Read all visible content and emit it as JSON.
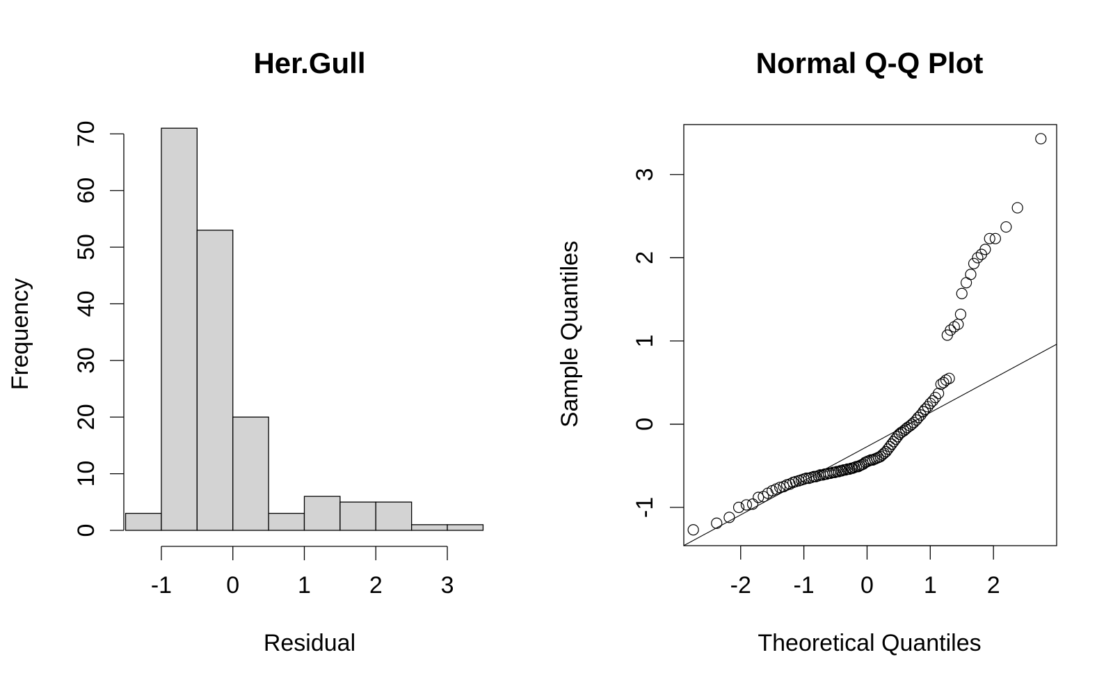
{
  "chart_data": [
    {
      "type": "bar",
      "title": "Her.Gull",
      "xlabel": "Residual",
      "ylabel": "Frequency",
      "bin_edges": [
        -1.5,
        -1,
        -0.5,
        0,
        0.5,
        1,
        1.5,
        2,
        2.5,
        3,
        3.5
      ],
      "values": [
        3,
        71,
        53,
        20,
        3,
        6,
        5,
        5,
        1,
        1
      ],
      "xticks": [
        -1,
        0,
        1,
        2,
        3
      ],
      "xtick_labels": [
        "-1",
        "0",
        "1",
        "2",
        "3"
      ],
      "yticks": [
        0,
        10,
        20,
        30,
        40,
        50,
        60,
        70
      ],
      "ytick_labels": [
        "0",
        "10",
        "20",
        "30",
        "40",
        "50",
        "60",
        "70"
      ],
      "xlim": [
        -1.7,
        3.7
      ],
      "ylim": [
        0,
        72.5
      ],
      "bar_color": "#d3d3d3"
    },
    {
      "type": "scatter",
      "title": "Normal Q-Q Plot",
      "xlabel": "Theoretical Quantiles",
      "ylabel": "Sample Quantiles",
      "xlim": [
        -2.9,
        3.0
      ],
      "ylim": [
        -1.46,
        3.6
      ],
      "xticks": [
        -2,
        -1,
        0,
        1,
        2
      ],
      "xtick_labels": [
        "-2",
        "-1",
        "0",
        "1",
        "2"
      ],
      "yticks": [
        -1,
        0,
        1,
        2,
        3
      ],
      "yticks_labels": [
        "-1",
        "0",
        "1",
        "2",
        "3"
      ],
      "reference_line": {
        "intercept": -0.27,
        "slope": 0.41
      },
      "points": [
        [
          -2.75,
          -1.27
        ],
        [
          -2.38,
          -1.19
        ],
        [
          -2.18,
          -1.12
        ],
        [
          -2.03,
          -1.0
        ],
        [
          -1.91,
          -0.97
        ],
        [
          -1.81,
          -0.96
        ],
        [
          -1.72,
          -0.88
        ],
        [
          -1.64,
          -0.87
        ],
        [
          -1.57,
          -0.83
        ],
        [
          -1.5,
          -0.8
        ],
        [
          -1.44,
          -0.78
        ],
        [
          -1.38,
          -0.76
        ],
        [
          -1.32,
          -0.75
        ],
        [
          -1.27,
          -0.73
        ],
        [
          -1.22,
          -0.72
        ],
        [
          -1.17,
          -0.7
        ],
        [
          -1.13,
          -0.69
        ],
        [
          -1.08,
          -0.68
        ],
        [
          -1.04,
          -0.67
        ],
        [
          -1.0,
          -0.66
        ],
        [
          -0.96,
          -0.65
        ],
        [
          -0.92,
          -0.65
        ],
        [
          -0.88,
          -0.64
        ],
        [
          -0.84,
          -0.63
        ],
        [
          -0.81,
          -0.63
        ],
        [
          -0.77,
          -0.62
        ],
        [
          -0.74,
          -0.61
        ],
        [
          -0.7,
          -0.61
        ],
        [
          -0.67,
          -0.6
        ],
        [
          -0.64,
          -0.6
        ],
        [
          -0.61,
          -0.59
        ],
        [
          -0.58,
          -0.59
        ],
        [
          -0.54,
          -0.58
        ],
        [
          -0.51,
          -0.58
        ],
        [
          -0.48,
          -0.57
        ],
        [
          -0.45,
          -0.57
        ],
        [
          -0.42,
          -0.56
        ],
        [
          -0.4,
          -0.56
        ],
        [
          -0.37,
          -0.55
        ],
        [
          -0.34,
          -0.55
        ],
        [
          -0.31,
          -0.54
        ],
        [
          -0.28,
          -0.54
        ],
        [
          -0.25,
          -0.53
        ],
        [
          -0.23,
          -0.53
        ],
        [
          -0.2,
          -0.52
        ],
        [
          -0.17,
          -0.51
        ],
        [
          -0.14,
          -0.51
        ],
        [
          -0.12,
          -0.5
        ],
        [
          -0.09,
          -0.49
        ],
        [
          -0.06,
          -0.48
        ],
        [
          -0.03,
          -0.46
        ],
        [
          0.0,
          -0.45
        ],
        [
          0.03,
          -0.44
        ],
        [
          0.06,
          -0.43
        ],
        [
          0.09,
          -0.43
        ],
        [
          0.12,
          -0.42
        ],
        [
          0.15,
          -0.41
        ],
        [
          0.18,
          -0.4
        ],
        [
          0.21,
          -0.39
        ],
        [
          0.24,
          -0.37
        ],
        [
          0.27,
          -0.35
        ],
        [
          0.3,
          -0.33
        ],
        [
          0.33,
          -0.3
        ],
        [
          0.36,
          -0.27
        ],
        [
          0.39,
          -0.24
        ],
        [
          0.42,
          -0.21
        ],
        [
          0.45,
          -0.18
        ],
        [
          0.48,
          -0.15
        ],
        [
          0.51,
          -0.12
        ],
        [
          0.54,
          -0.1
        ],
        [
          0.58,
          -0.08
        ],
        [
          0.61,
          -0.06
        ],
        [
          0.64,
          -0.04
        ],
        [
          0.68,
          -0.02
        ],
        [
          0.71,
          0.0
        ],
        [
          0.74,
          0.02
        ],
        [
          0.78,
          0.05
        ],
        [
          0.81,
          0.08
        ],
        [
          0.85,
          0.11
        ],
        [
          0.89,
          0.15
        ],
        [
          0.92,
          0.18
        ],
        [
          0.96,
          0.21
        ],
        [
          1.0,
          0.25
        ],
        [
          1.04,
          0.28
        ],
        [
          1.08,
          0.32
        ],
        [
          1.13,
          0.37
        ],
        [
          1.17,
          0.48
        ],
        [
          1.21,
          0.5
        ],
        [
          1.25,
          0.53
        ],
        [
          1.3,
          0.55
        ],
        [
          1.27,
          1.07
        ],
        [
          1.32,
          1.13
        ],
        [
          1.38,
          1.17
        ],
        [
          1.44,
          1.2
        ],
        [
          1.48,
          1.32
        ],
        [
          1.5,
          1.57
        ],
        [
          1.57,
          1.7
        ],
        [
          1.64,
          1.8
        ],
        [
          1.69,
          1.93
        ],
        [
          1.75,
          2.0
        ],
        [
          1.81,
          2.04
        ],
        [
          1.87,
          2.1
        ],
        [
          1.94,
          2.23
        ],
        [
          2.03,
          2.23
        ],
        [
          2.2,
          2.37
        ],
        [
          2.38,
          2.6
        ],
        [
          2.75,
          3.43
        ]
      ]
    }
  ]
}
